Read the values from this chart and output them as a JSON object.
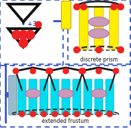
{
  "bg_color": "#ffffff",
  "border_color": "#3355cc",
  "text_discrete": "discrete prism",
  "text_frustum": "extended frustum",
  "arrow_color": "#2244cc",
  "tri_color": "#111111",
  "red_dot": "#ee2222",
  "yellow_rod": "#ffee00",
  "cyan_rod": "#00ddee",
  "pink_ellipse": "#cc99bb",
  "dark_line": "#222222",
  "gray_rod": "#99bbcc"
}
